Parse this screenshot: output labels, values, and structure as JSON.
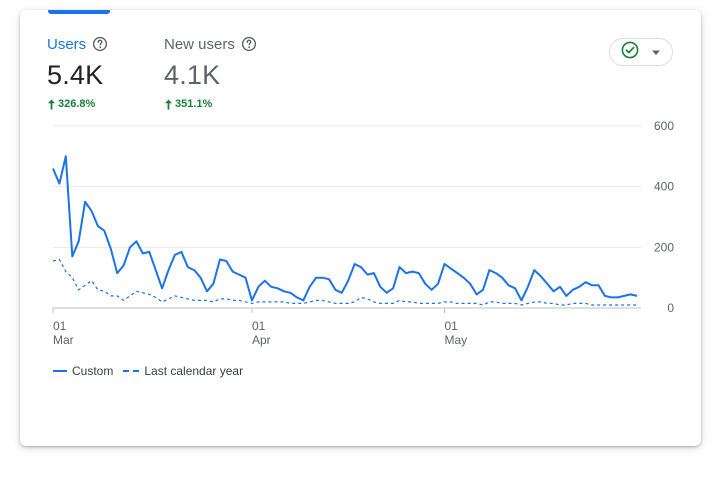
{
  "metrics": {
    "users": {
      "title": "Users",
      "value": "5.4K",
      "change": "326.8%"
    },
    "new_users": {
      "title": "New users",
      "value": "4.1K",
      "change": "351.1%"
    }
  },
  "icons": {
    "help": "help-circle-icon",
    "status": "check-circle-icon",
    "dropdown": "caret-down-icon",
    "change": "arrow-up-icon"
  },
  "colors": {
    "primary": "#1a73e8",
    "positive": "#188038",
    "muted": "#5f6368",
    "status": "#188038"
  },
  "chart_data": {
    "type": "line",
    "y_ticks": [
      600,
      400,
      200,
      0
    ],
    "ylim": [
      0,
      600
    ],
    "x_ticks": [
      {
        "day": "01",
        "month": "Mar",
        "index": 0
      },
      {
        "day": "01",
        "month": "Apr",
        "index": 31
      },
      {
        "day": "01",
        "month": "May",
        "index": 61
      }
    ],
    "grid": true,
    "legend_position": "bottom-left",
    "series": [
      {
        "name": "Custom",
        "style": "solid",
        "values": [
          460,
          410,
          500,
          170,
          220,
          350,
          320,
          270,
          255,
          195,
          115,
          140,
          200,
          220,
          180,
          185,
          125,
          65,
          125,
          175,
          185,
          135,
          125,
          100,
          55,
          80,
          160,
          155,
          120,
          110,
          100,
          25,
          70,
          90,
          70,
          65,
          55,
          50,
          35,
          25,
          70,
          100,
          100,
          95,
          60,
          50,
          90,
          145,
          135,
          110,
          115,
          70,
          50,
          65,
          135,
          115,
          120,
          115,
          80,
          60,
          80,
          145,
          130,
          115,
          100,
          80,
          45,
          60,
          125,
          115,
          100,
          75,
          65,
          25,
          70,
          125,
          105,
          80,
          55,
          70,
          40,
          60,
          70,
          85,
          75,
          75,
          40,
          35,
          35,
          40,
          45,
          40
        ]
      },
      {
        "name": "Last calendar year",
        "style": "dashed",
        "values": [
          155,
          160,
          120,
          100,
          60,
          75,
          90,
          60,
          55,
          40,
          40,
          25,
          40,
          55,
          50,
          45,
          35,
          20,
          30,
          40,
          35,
          30,
          25,
          25,
          25,
          20,
          30,
          30,
          25,
          25,
          20,
          15,
          20,
          20,
          20,
          20,
          20,
          15,
          15,
          15,
          20,
          25,
          25,
          20,
          15,
          15,
          15,
          20,
          35,
          30,
          20,
          15,
          15,
          15,
          25,
          20,
          20,
          15,
          15,
          15,
          15,
          20,
          20,
          15,
          15,
          15,
          15,
          10,
          20,
          20,
          15,
          15,
          15,
          10,
          15,
          20,
          20,
          15,
          15,
          10,
          10,
          15,
          15,
          15,
          10,
          10,
          10,
          10,
          10,
          10,
          10,
          10
        ]
      }
    ]
  }
}
